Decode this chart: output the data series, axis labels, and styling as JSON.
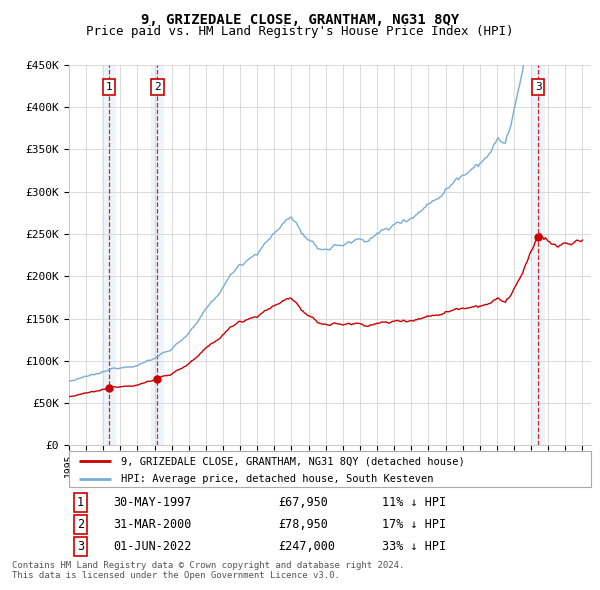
{
  "title": "9, GRIZEDALE CLOSE, GRANTHAM, NG31 8QY",
  "subtitle": "Price paid vs. HM Land Registry's House Price Index (HPI)",
  "legend_line1": "9, GRIZEDALE CLOSE, GRANTHAM, NG31 8QY (detached house)",
  "legend_line2": "HPI: Average price, detached house, South Kesteven",
  "transactions": [
    {
      "label": "1",
      "date": "30-MAY-1997",
      "price": 67950,
      "pct": "11%",
      "dir": "↓"
    },
    {
      "label": "2",
      "date": "31-MAR-2000",
      "price": 78950,
      "pct": "17%",
      "dir": "↓"
    },
    {
      "label": "3",
      "date": "01-JUN-2022",
      "price": 247000,
      "pct": "33%",
      "dir": "↓"
    }
  ],
  "sale_prices": [
    67950,
    78950,
    247000
  ],
  "footnote1": "Contains HM Land Registry data © Crown copyright and database right 2024.",
  "footnote2": "This data is licensed under the Open Government Licence v3.0.",
  "ylim": [
    0,
    450000
  ],
  "yticks": [
    0,
    50000,
    100000,
    150000,
    200000,
    250000,
    300000,
    350000,
    400000,
    450000
  ],
  "hpi_color": "#7aadd4",
  "price_color": "#cc0000",
  "dot_color": "#cc0000",
  "dashed_line_color": "#cc0000",
  "shade_color": "#cce0f5",
  "background_color": "#ffffff",
  "grid_color": "#cccccc",
  "title_fontsize": 10,
  "subtitle_fontsize": 9,
  "x_start_year": 1995,
  "x_end_year": 2025
}
